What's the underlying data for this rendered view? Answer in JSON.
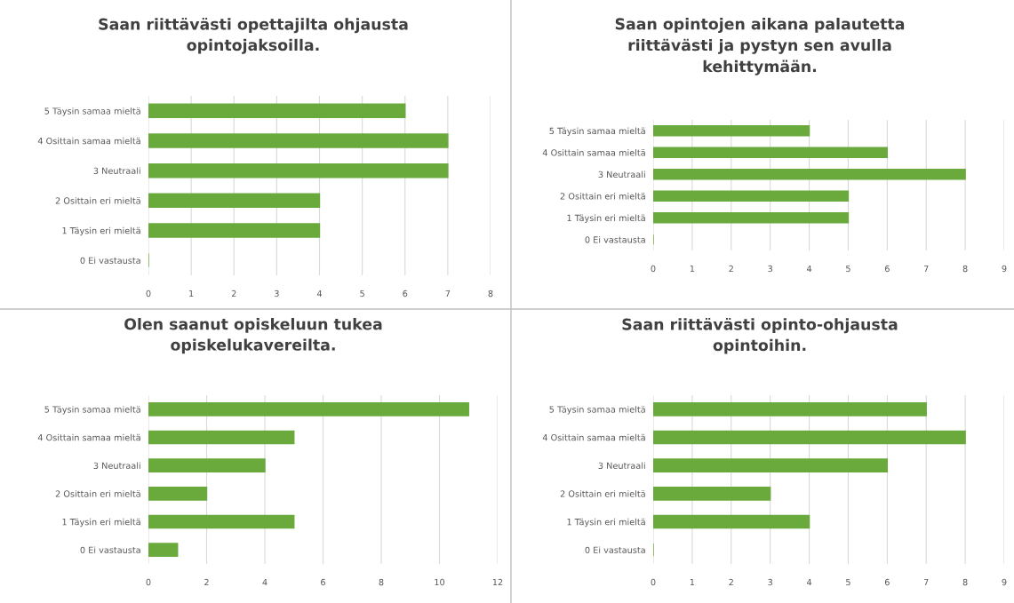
{
  "chart_data": [
    {
      "type": "bar",
      "orientation": "horizontal",
      "title": "Saan riittävästi opettajilta ohjausta\nopintojaksoilla.",
      "categories": [
        "5 Täysin samaa mieltä",
        "4 Osittain samaa mieltä",
        "3 Neutraali",
        "2 Osittain eri mieltä",
        "1 Täysin eri mieltä",
        "0 Ei vastausta"
      ],
      "values": [
        6,
        7,
        7,
        4,
        4,
        0
      ],
      "color": "#6aaa3c",
      "xlim": [
        0,
        8
      ],
      "xticks": [
        0,
        1,
        2,
        3,
        4,
        5,
        6,
        7,
        8
      ],
      "grid": "x"
    },
    {
      "type": "bar",
      "orientation": "horizontal",
      "title": "Saan opintojen aikana palautetta\nriittävästi ja pystyn sen avulla\nkehittymään.",
      "categories": [
        "5 Täysin samaa mieltä",
        "4 Osittain samaa mieltä",
        "3 Neutraali",
        "2 Osittain eri mieltä",
        "1 Täysin eri mieltä",
        "0 Ei vastausta"
      ],
      "values": [
        4,
        6,
        8,
        5,
        5,
        0
      ],
      "color": "#6aaa3c",
      "xlim": [
        0,
        9
      ],
      "xticks": [
        0,
        1,
        2,
        3,
        4,
        5,
        6,
        7,
        8,
        9
      ],
      "grid": "x"
    },
    {
      "type": "bar",
      "orientation": "horizontal",
      "title": "Olen saanut opiskeluun tukea\nopiskelukavereilta.",
      "categories": [
        "5 Täysin samaa mieltä",
        "4 Osittain samaa mieltä",
        "3 Neutraali",
        "2 Osittain eri mieltä",
        "1 Täysin eri mieltä",
        "0 Ei vastausta"
      ],
      "values": [
        11,
        5,
        4,
        2,
        5,
        1
      ],
      "color": "#6aaa3c",
      "xlim": [
        0,
        12
      ],
      "xticks": [
        0,
        2,
        4,
        6,
        8,
        10,
        12
      ],
      "grid": "x"
    },
    {
      "type": "bar",
      "orientation": "horizontal",
      "title": "Saan riittävästi opinto-ohjausta\nopintoihin.",
      "categories": [
        "5 Täysin samaa mieltä",
        "4 Osittain samaa mieltä",
        "3 Neutraali",
        "2 Osittain eri mieltä",
        "1 Täysin eri mieltä",
        "0 Ei vastausta"
      ],
      "values": [
        7,
        8,
        6,
        3,
        4,
        0
      ],
      "color": "#6aaa3c",
      "xlim": [
        0,
        9
      ],
      "xticks": [
        0,
        1,
        2,
        3,
        4,
        5,
        6,
        7,
        8,
        9
      ],
      "grid": "x"
    }
  ]
}
